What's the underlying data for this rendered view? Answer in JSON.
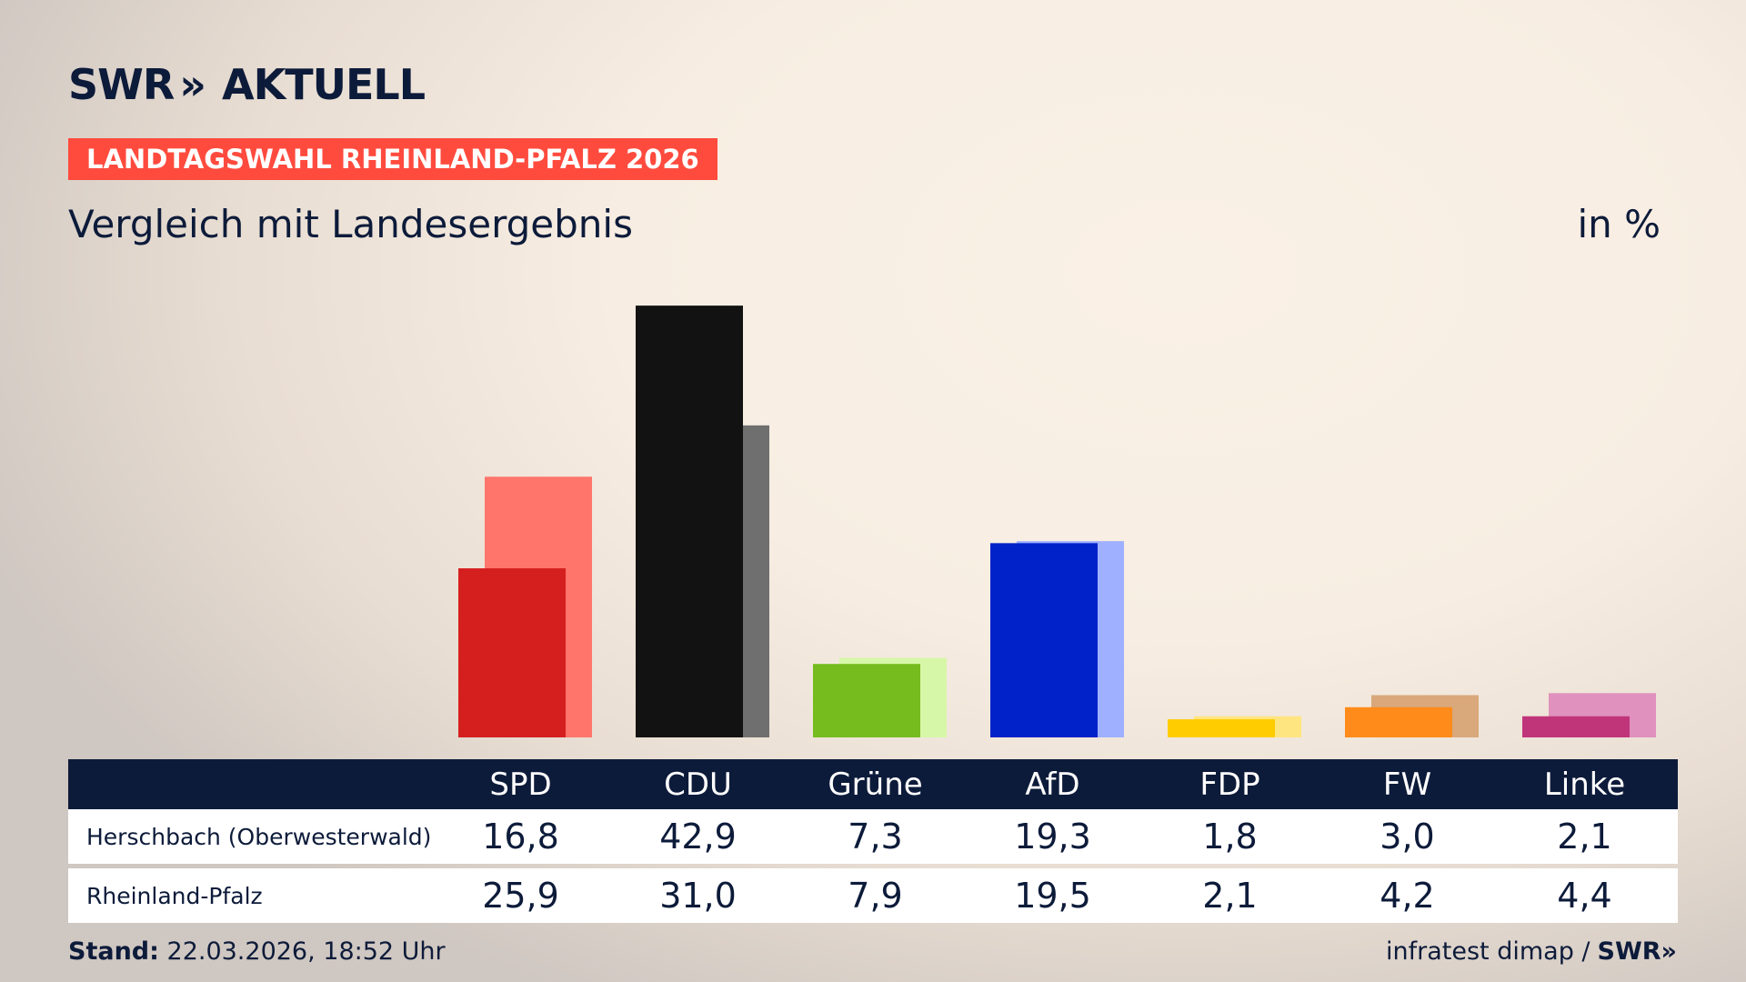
{
  "header": {
    "logo_swr": "SWR",
    "logo_chevron": "»",
    "logo_aktuell": "AKTUELL",
    "banner": "LANDTAGSWAHL RHEINLAND-PFALZ 2026",
    "subtitle": "Vergleich mit Landesergebnis",
    "unit": "in %"
  },
  "chart_data": {
    "type": "bar",
    "categories": [
      "SPD",
      "CDU",
      "Grüne",
      "AfD",
      "FDP",
      "FW",
      "Linke"
    ],
    "series": [
      {
        "name": "Herschbach (Oberwesterwald)",
        "values": [
          16.8,
          42.9,
          7.3,
          19.3,
          1.8,
          3.0,
          2.1
        ]
      },
      {
        "name": "Rheinland-Pfalz",
        "values": [
          25.9,
          31.0,
          7.9,
          19.5,
          2.1,
          4.2,
          4.4
        ]
      }
    ],
    "colors": {
      "Herschbach (Oberwesterwald)": [
        "#d51f1f",
        "#121212",
        "#77bc1f",
        "#0022c8",
        "#ffcc00",
        "#ff8c1a",
        "#c0357a"
      ],
      "Rheinland-Pfalz": [
        "#ff756b",
        "#6f6f6f",
        "#d7f7a8",
        "#9eb0ff",
        "#ffe57f",
        "#d9a87b",
        "#e091bd"
      ]
    },
    "ylim": [
      0,
      43
    ],
    "grid": false,
    "legend": "table-below"
  },
  "table": {
    "headers": [
      "SPD",
      "CDU",
      "Grüne",
      "AfD",
      "FDP",
      "FW",
      "Linke"
    ],
    "rows": [
      {
        "label": "Herschbach (Oberwesterwald)",
        "values": [
          "16,8",
          "42,9",
          "7,3",
          "19,3",
          "1,8",
          "3,0",
          "2,1"
        ]
      },
      {
        "label": "Rheinland-Pfalz",
        "values": [
          "25,9",
          "31,0",
          "7,9",
          "19,5",
          "2,1",
          "4,2",
          "4,4"
        ]
      }
    ]
  },
  "footer": {
    "stand_label": "Stand:",
    "stand_value": "22.03.2026, 18:52 Uhr",
    "source": "infratest dimap /",
    "source_logo": "SWR»"
  },
  "colors": {
    "navy": "#0d1b3a",
    "banner": "#ff4b3e"
  }
}
